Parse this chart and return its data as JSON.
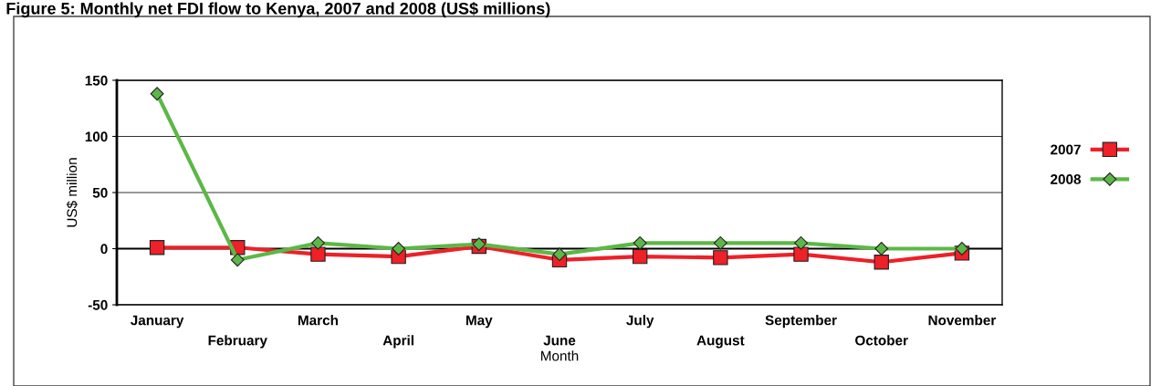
{
  "chart_data": {
    "type": "line",
    "title": "Figure 5: Monthly net FDI flow to Kenya, 2007 and 2008 (US$ millions)",
    "xlabel": "Month",
    "ylabel": "US$ million",
    "categories": [
      "January",
      "February",
      "March",
      "April",
      "May",
      "June",
      "July",
      "August",
      "September",
      "October",
      "November"
    ],
    "series": [
      {
        "name": "2007",
        "color": "#ee2028",
        "marker": "square",
        "values": [
          1,
          1,
          -5,
          -7,
          2,
          -10,
          -7,
          -8,
          -5,
          -12,
          -4
        ]
      },
      {
        "name": "2008",
        "color": "#5cb846",
        "marker": "diamond",
        "values": [
          138,
          -10,
          5,
          0,
          4,
          -5,
          5,
          5,
          5,
          0,
          0
        ]
      }
    ],
    "ylim": [
      -50,
      150
    ],
    "yticks": [
      -50,
      0,
      50,
      100,
      150
    ],
    "grid": "y",
    "legend": "right",
    "line_style": "solid"
  }
}
